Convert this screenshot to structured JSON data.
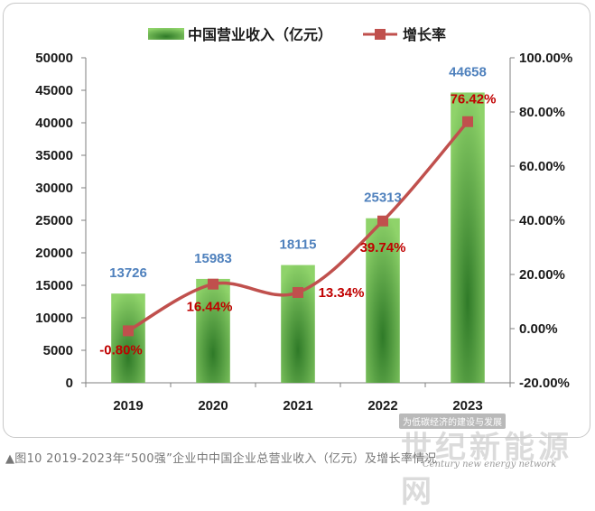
{
  "chart_data": {
    "type": "bar",
    "categories": [
      "2019",
      "2020",
      "2021",
      "2022",
      "2023"
    ],
    "series": [
      {
        "name": "中国营业收入（亿元）",
        "type": "bar",
        "axis": "left",
        "values": [
          13726,
          15983,
          18115,
          25313,
          44658
        ],
        "labels": [
          "13726",
          "15983",
          "18115",
          "25313",
          "44658"
        ]
      },
      {
        "name": "增长率",
        "type": "line",
        "axis": "right",
        "values": [
          -0.8,
          16.44,
          13.34,
          39.74,
          76.42
        ],
        "labels": [
          "-0.80%",
          "16.44%",
          "13.34%",
          "39.74%",
          "76.42%"
        ]
      }
    ],
    "ylim": [
      0,
      50000
    ],
    "yticks": [
      "0",
      "5000",
      "10000",
      "15000",
      "20000",
      "25000",
      "30000",
      "35000",
      "40000",
      "45000",
      "50000"
    ],
    "y2lim": [
      -20,
      100
    ],
    "y2ticks": [
      "-20.00%",
      "0.00%",
      "20.00%",
      "40.00%",
      "60.00%",
      "80.00%",
      "100.00%"
    ],
    "legend": "top",
    "grid": false,
    "colors": {
      "bar_light": "#8fd36a",
      "bar_dark": "#2f7a28",
      "line": "#c0504d",
      "bar_label": "#4f81bd",
      "rate_label": "#c00000"
    }
  },
  "caption": "▲图10 2019-2023年“500强”企业中中国企业总营业收入（亿元）及增长率情况",
  "watermark": {
    "tag": "为低碳经济的建设与发展",
    "brand": "世纪新能源网",
    "english": "Century new energy network"
  }
}
